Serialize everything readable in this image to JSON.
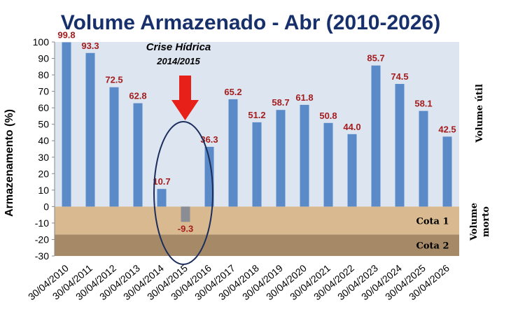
{
  "chart_data": {
    "type": "bar",
    "title": "Volume Armazenado - Abr (2010-2026)",
    "ylabel": "Armazenamento (%)",
    "xlabel": "",
    "ylim": [
      -30,
      100
    ],
    "yticks": [
      100,
      90,
      80,
      70,
      60,
      50,
      40,
      30,
      20,
      10,
      0,
      -10,
      -20,
      -30
    ],
    "categories": [
      "30/04/2010",
      "30/04/2011",
      "30/04/2012",
      "30/04/2013",
      "30/04/2014",
      "30/04/2015",
      "30/04/2016",
      "30/04/2017",
      "30/04/2018",
      "30/04/2019",
      "30/04/2020",
      "30/04/2021",
      "30/04/2022",
      "30/04/2023",
      "30/04/2024",
      "30/04/2025",
      "30/04/2026"
    ],
    "values": [
      99.8,
      93.3,
      72.5,
      62.8,
      10.7,
      -9.3,
      36.3,
      65.2,
      51.2,
      58.7,
      61.8,
      50.8,
      44.0,
      85.7,
      74.5,
      58.1,
      42.5
    ],
    "value_labels": [
      "99.8",
      "93.3",
      "72.5",
      "62.8",
      "10.7",
      "-9.3",
      "36.3",
      "65.2",
      "51.2",
      "58.7",
      "61.8",
      "50.8",
      "44.0",
      "85.7",
      "74.5",
      "58.1",
      "42.5"
    ],
    "annotation": {
      "line1": "Crise Hídrica",
      "line2": "2014/2015",
      "highlight_category": "30/04/2015"
    },
    "regions": {
      "useful_label": "Volume útil",
      "dead_label_1": "Volume",
      "dead_label_2": "morto",
      "cota1": {
        "label": "Cota 1",
        "range": [
          -17,
          0
        ]
      },
      "cota2": {
        "label": "Cota 2",
        "range": [
          -30,
          -17
        ]
      }
    },
    "grid": false,
    "colors": {
      "bar": "#5b8ac9",
      "negative_bar": "#8a8e94",
      "useful_bg": "#dde5f1",
      "cota1_bg": "#d9b98f",
      "cota2_bg": "#a68a68",
      "title": "#17306b",
      "data_label": "#a51c1c",
      "arrow": "#e8201a",
      "ellipse": "#1b2d5c"
    }
  }
}
